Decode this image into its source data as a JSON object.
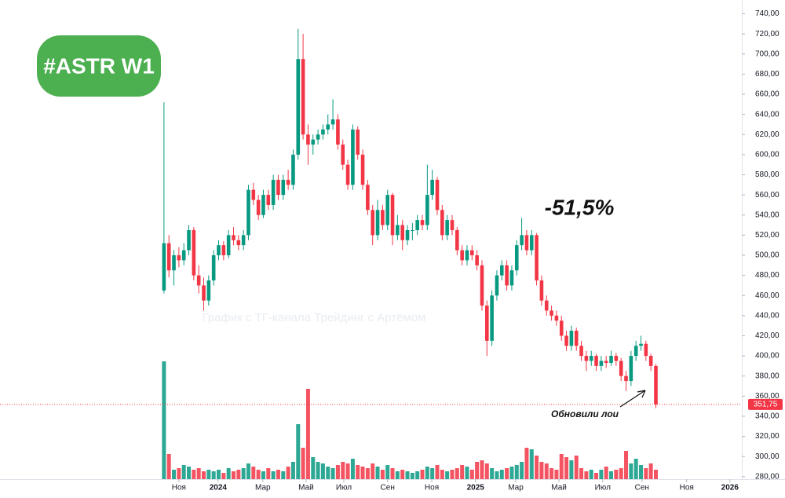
{
  "chart_data": {
    "type": "candlestick",
    "title": "#ASTR W1",
    "annotations": [
      "-51,5%",
      "Обновили лои"
    ],
    "watermark": "График с ТГ-канала Трейдинг с Артёмом",
    "up_color": "#089981",
    "down_color": "#f23645",
    "badge_color": "#4caf50",
    "ylim": [
      277.5,
      749
    ],
    "yticks": [
      {
        "value": 280,
        "label": "280,00"
      },
      {
        "value": 300,
        "label": "300,00"
      },
      {
        "value": 320,
        "label": "320,00"
      },
      {
        "value": 340,
        "label": "340,00"
      },
      {
        "value": 360,
        "label": "360,00"
      },
      {
        "value": 380,
        "label": "380,00"
      },
      {
        "value": 400,
        "label": "400,00"
      },
      {
        "value": 420,
        "label": "420,00"
      },
      {
        "value": 440,
        "label": "440,00"
      },
      {
        "value": 460,
        "label": "460,00"
      },
      {
        "value": 480,
        "label": "480,00"
      },
      {
        "value": 500,
        "label": "500,00"
      },
      {
        "value": 520,
        "label": "520,00"
      },
      {
        "value": 540,
        "label": "540,00"
      },
      {
        "value": 560,
        "label": "560,00"
      },
      {
        "value": 580,
        "label": "580,00"
      },
      {
        "value": 600,
        "label": "600,00"
      },
      {
        "value": 620,
        "label": "620,00"
      },
      {
        "value": 640,
        "label": "640,00"
      },
      {
        "value": 660,
        "label": "660,00"
      },
      {
        "value": 680,
        "label": "680,00"
      },
      {
        "value": 700,
        "label": "700,00"
      },
      {
        "value": 720,
        "label": "720,00"
      },
      {
        "value": 740,
        "label": "740,00"
      }
    ],
    "xlim": [
      -33,
      116.3
    ],
    "xticks": [
      {
        "value": 3,
        "label": "Ноя"
      },
      {
        "value": 10.9,
        "label": "2024"
      },
      {
        "value": 19.9,
        "label": "Мар"
      },
      {
        "value": 28.6,
        "label": "Май"
      },
      {
        "value": 36.2,
        "label": "Июл"
      },
      {
        "value": 45,
        "label": "Сен"
      },
      {
        "value": 53.9,
        "label": "Ноя"
      },
      {
        "value": 62.7,
        "label": "2025"
      },
      {
        "value": 70.8,
        "label": "Мар"
      },
      {
        "value": 79.5,
        "label": "Май"
      },
      {
        "value": 88.3,
        "label": "Июл"
      },
      {
        "value": 96.2,
        "label": "Сен"
      },
      {
        "value": 105.2,
        "label": "Ноя"
      },
      {
        "value": 113.9,
        "label": "2026"
      }
    ],
    "last_price": {
      "value": 351.75,
      "label": "351,75"
    },
    "candles": [
      [
        465,
        652,
        462,
        512
      ],
      [
        512,
        520,
        478,
        485
      ],
      [
        485,
        505,
        470,
        500
      ],
      [
        500,
        508,
        488,
        495
      ],
      [
        495,
        512,
        490,
        505
      ],
      [
        505,
        530,
        500,
        525
      ],
      [
        525,
        528,
        475,
        480
      ],
      [
        480,
        490,
        462,
        470
      ],
      [
        470,
        478,
        445,
        455
      ],
      [
        455,
        480,
        450,
        475
      ],
      [
        475,
        505,
        470,
        500
      ],
      [
        500,
        515,
        495,
        510
      ],
      [
        510,
        514,
        495,
        500
      ],
      [
        500,
        525,
        497,
        520
      ],
      [
        520,
        528,
        510,
        515
      ],
      [
        515,
        520,
        505,
        510
      ],
      [
        510,
        525,
        505,
        520
      ],
      [
        520,
        570,
        515,
        565
      ],
      [
        565,
        572,
        550,
        555
      ],
      [
        555,
        560,
        535,
        540
      ],
      [
        540,
        565,
        537,
        560
      ],
      [
        560,
        565,
        545,
        550
      ],
      [
        550,
        580,
        545,
        575
      ],
      [
        575,
        580,
        555,
        560
      ],
      [
        560,
        580,
        555,
        575
      ],
      [
        575,
        585,
        565,
        570
      ],
      [
        570,
        605,
        565,
        600
      ],
      [
        600,
        725,
        595,
        695
      ],
      [
        695,
        720,
        615,
        620
      ],
      [
        620,
        630,
        590,
        610
      ],
      [
        610,
        620,
        600,
        615
      ],
      [
        615,
        625,
        610,
        620
      ],
      [
        620,
        630,
        615,
        625
      ],
      [
        625,
        640,
        620,
        630
      ],
      [
        630,
        655,
        625,
        635
      ],
      [
        635,
        640,
        605,
        610
      ],
      [
        610,
        615,
        585,
        590
      ],
      [
        590,
        595,
        565,
        570
      ],
      [
        570,
        630,
        565,
        625
      ],
      [
        625,
        628,
        595,
        600
      ],
      [
        600,
        605,
        565,
        570
      ],
      [
        570,
        575,
        540,
        545
      ],
      [
        545,
        550,
        510,
        520
      ],
      [
        520,
        555,
        515,
        545
      ],
      [
        545,
        550,
        525,
        530
      ],
      [
        530,
        565,
        525,
        560
      ],
      [
        560,
        562,
        510,
        520
      ],
      [
        520,
        540,
        515,
        530
      ],
      [
        530,
        535,
        505,
        515
      ],
      [
        515,
        530,
        510,
        525
      ],
      [
        525,
        532,
        515,
        525
      ],
      [
        525,
        540,
        520,
        535
      ],
      [
        535,
        540,
        525,
        530
      ],
      [
        530,
        590,
        525,
        560
      ],
      [
        560,
        585,
        555,
        575
      ],
      [
        575,
        578,
        540,
        545
      ],
      [
        545,
        550,
        515,
        520
      ],
      [
        520,
        540,
        515,
        535
      ],
      [
        535,
        540,
        520,
        525
      ],
      [
        525,
        528,
        500,
        505
      ],
      [
        505,
        510,
        490,
        495
      ],
      [
        495,
        510,
        490,
        505
      ],
      [
        505,
        510,
        495,
        500
      ],
      [
        500,
        505,
        485,
        490
      ],
      [
        490,
        495,
        445,
        450
      ],
      [
        450,
        455,
        400,
        415
      ],
      [
        415,
        465,
        410,
        460
      ],
      [
        460,
        485,
        455,
        480
      ],
      [
        480,
        495,
        475,
        490
      ],
      [
        490,
        495,
        465,
        470
      ],
      [
        470,
        490,
        465,
        485
      ],
      [
        485,
        515,
        480,
        510
      ],
      [
        510,
        537,
        505,
        520
      ],
      [
        520,
        525,
        500,
        505
      ],
      [
        505,
        525,
        500,
        520
      ],
      [
        520,
        522,
        470,
        475
      ],
      [
        475,
        480,
        450,
        455
      ],
      [
        455,
        460,
        440,
        445
      ],
      [
        445,
        450,
        435,
        440
      ],
      [
        440,
        445,
        430,
        435
      ],
      [
        435,
        440,
        415,
        420
      ],
      [
        420,
        425,
        405,
        410
      ],
      [
        410,
        430,
        405,
        425
      ],
      [
        425,
        428,
        405,
        410
      ],
      [
        410,
        415,
        395,
        400
      ],
      [
        400,
        405,
        385,
        395
      ],
      [
        395,
        405,
        390,
        400
      ],
      [
        400,
        402,
        385,
        390
      ],
      [
        390,
        400,
        385,
        395
      ],
      [
        395,
        400,
        388,
        393
      ],
      [
        393,
        405,
        390,
        400
      ],
      [
        400,
        403,
        390,
        395
      ],
      [
        395,
        398,
        375,
        380
      ],
      [
        380,
        385,
        365,
        375
      ],
      [
        375,
        405,
        370,
        400
      ],
      [
        400,
        415,
        395,
        410
      ],
      [
        410,
        420,
        405,
        412
      ],
      [
        412,
        415,
        395,
        400
      ],
      [
        400,
        402,
        385,
        390
      ],
      [
        390,
        392,
        348,
        351.75
      ]
    ],
    "volume": [
      150,
      32,
      12,
      14,
      18,
      16,
      12,
      14,
      10,
      12,
      10,
      12,
      8,
      14,
      10,
      12,
      14,
      20,
      16,
      12,
      10,
      14,
      10,
      12,
      10,
      16,
      22,
      70,
      40,
      115,
      28,
      22,
      20,
      16,
      14,
      18,
      22,
      20,
      26,
      18,
      16,
      14,
      20,
      16,
      12,
      18,
      14,
      10,
      12,
      10,
      8,
      10,
      12,
      16,
      14,
      18,
      12,
      10,
      12,
      14,
      18,
      16,
      12,
      22,
      24,
      20,
      14,
      10,
      12,
      14,
      16,
      18,
      22,
      40,
      38,
      30,
      22,
      20,
      14,
      12,
      32,
      28,
      24,
      30,
      14,
      10,
      12,
      8,
      12,
      16,
      10,
      12,
      14,
      36,
      20,
      26,
      18,
      14,
      20,
      12
    ]
  }
}
